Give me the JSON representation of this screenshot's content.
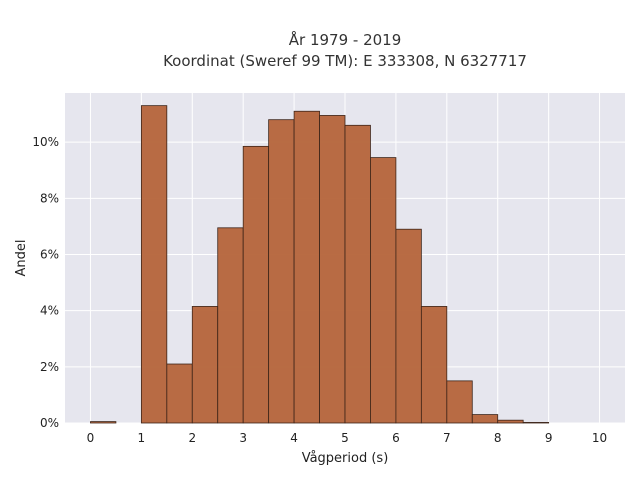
{
  "chart_data": {
    "type": "bar",
    "title_line1": "År 1979 - 2019",
    "title_line2": "Koordinat (Sweref 99 TM): E 333308, N 6327717",
    "xlabel": "Vågperiod (s)",
    "ylabel": "Andel",
    "bin_width": 0.5,
    "bins": [
      {
        "x0": 0.0,
        "value": 0.05
      },
      {
        "x0": 0.5,
        "value": 0.0
      },
      {
        "x0": 1.0,
        "value": 11.3
      },
      {
        "x0": 1.5,
        "value": 2.1
      },
      {
        "x0": 2.0,
        "value": 4.15
      },
      {
        "x0": 2.5,
        "value": 6.95
      },
      {
        "x0": 3.0,
        "value": 9.85
      },
      {
        "x0": 3.5,
        "value": 10.8
      },
      {
        "x0": 4.0,
        "value": 11.1
      },
      {
        "x0": 4.5,
        "value": 10.95
      },
      {
        "x0": 5.0,
        "value": 10.6
      },
      {
        "x0": 5.5,
        "value": 9.45
      },
      {
        "x0": 6.0,
        "value": 6.9
      },
      {
        "x0": 6.5,
        "value": 4.15
      },
      {
        "x0": 7.0,
        "value": 1.5
      },
      {
        "x0": 7.5,
        "value": 0.3
      },
      {
        "x0": 8.0,
        "value": 0.1
      },
      {
        "x0": 8.5,
        "value": 0.02
      }
    ],
    "xlim": [
      -0.5,
      10.5
    ],
    "ylim": [
      0,
      11.75
    ],
    "x_ticks": [
      0,
      1,
      2,
      3,
      4,
      5,
      6,
      7,
      8,
      9,
      10
    ],
    "x_tick_labels": [
      "0",
      "1",
      "2",
      "3",
      "4",
      "5",
      "6",
      "7",
      "8",
      "9",
      "10"
    ],
    "y_ticks": [
      0,
      2,
      4,
      6,
      8,
      10
    ],
    "y_tick_labels": [
      "0%",
      "2%",
      "4%",
      "6%",
      "8%",
      "10%"
    ],
    "grid": true,
    "colors": {
      "bar_fill": "#b5643a",
      "bar_edge": "#3d2418",
      "plot_background": "#e6e6ee",
      "grid": "#ffffff"
    }
  }
}
